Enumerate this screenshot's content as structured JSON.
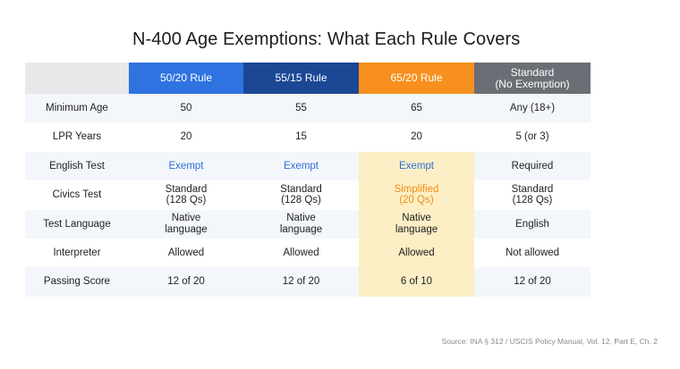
{
  "title": "N-400 Age Exemptions: What Each Rule Covers",
  "colors": {
    "rule_50_20": "#2f73e0",
    "rule_55_15": "#1b4795",
    "rule_65_20": "#f7901e",
    "standard": "#6b6e75",
    "highlight": "#fcefc6",
    "exempt_text": "#2f6fd6",
    "simplified_text": "#f28c12"
  },
  "columns": [
    {
      "label": "50/20 Rule"
    },
    {
      "label": "55/15 Rule"
    },
    {
      "label": "65/20 Rule"
    },
    {
      "label": "Standard\n(No Exemption)"
    }
  ],
  "rows": [
    {
      "label": "Minimum Age",
      "values": [
        "50",
        "55",
        "65",
        "Any (18+)"
      ]
    },
    {
      "label": "LPR Years",
      "values": [
        "20",
        "15",
        "20",
        "5 (or 3)"
      ]
    },
    {
      "label": "English Test",
      "values": [
        "Exempt",
        "Exempt",
        "Exempt",
        "Required"
      ]
    },
    {
      "label": "Civics Test",
      "values": [
        "Standard\n(128 Qs)",
        "Standard\n(128 Qs)",
        "Simplified\n(20 Qs)",
        "Standard\n(128 Qs)"
      ]
    },
    {
      "label": "Test Language",
      "values": [
        "Native\nlanguage",
        "Native\nlanguage",
        "Native\nlanguage",
        "English"
      ]
    },
    {
      "label": "Interpreter",
      "values": [
        "Allowed",
        "Allowed",
        "Allowed",
        "Not allowed"
      ]
    },
    {
      "label": "Passing Score",
      "values": [
        "12 of 20",
        "12 of 20",
        "6 of 10",
        "12 of 20"
      ]
    }
  ],
  "source": "Source: INA § 312 / USCIS Policy Manual, Vol. 12, Part E, Ch. 2"
}
